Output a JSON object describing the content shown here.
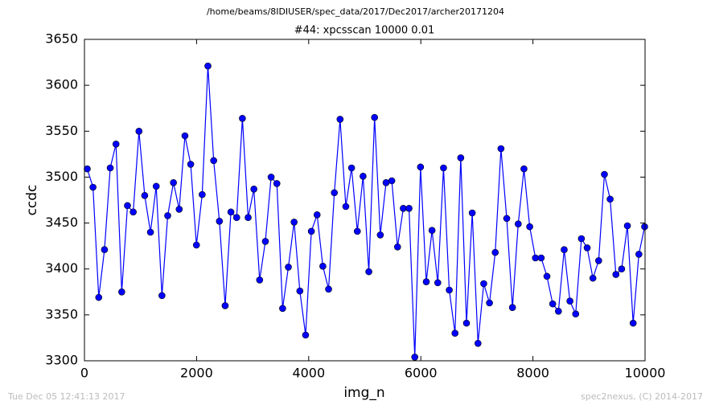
{
  "chart_data": {
    "type": "line",
    "suptitle": "/home/beams/8IDIUSER/spec_data/2017/Dec2017/archer20171204",
    "title": "#44: xpcsscan 10000 0.01",
    "xlabel": "img_n",
    "ylabel": "ccdc",
    "annotations": [
      "Tue Dec 05 12:41:13 2017",
      "spec2nexus, (C) 2014-2017"
    ],
    "color": "#0000ff",
    "x": [
      50,
      152.5,
      255,
      357.5,
      460,
      562.5,
      665,
      767.5,
      870,
      972.5,
      1075,
      1177.5,
      1280,
      1382.5,
      1485,
      1587.5,
      1690,
      1792.5,
      1895,
      1997.5,
      2100,
      2202.5,
      2305,
      2407.5,
      2510,
      2612.5,
      2715,
      2817.5,
      2920,
      3022.5,
      3125,
      3227.5,
      3330,
      3432.5,
      3535,
      3637.5,
      3740,
      3842.5,
      3945,
      4047.5,
      4150,
      4252.5,
      4355,
      4457.5,
      4560,
      4662.5,
      4765,
      4867.5,
      4970,
      5072.5,
      5175,
      5277.5,
      5380,
      5482.5,
      5585,
      5687.5,
      5790,
      5892.5,
      5995,
      6097.5,
      6200,
      6302.5,
      6405,
      6507.5,
      6610,
      6712.5,
      6815,
      6917.5,
      7020,
      7122.5,
      7225,
      7327.5,
      7430,
      7532.5,
      7635,
      7737.5,
      7840,
      7942.5,
      8045,
      8147.5,
      8250,
      8352.5,
      8455,
      8557.5,
      8660,
      8762.5,
      8865,
      8967.5,
      9070,
      9172.5,
      9275,
      9377.5,
      9480,
      9582.5,
      9685,
      9787.5,
      9890,
      9992.5
    ],
    "values": [
      3509,
      3489,
      3369,
      3421,
      3510,
      3536,
      3375,
      3469,
      3462,
      3550,
      3480,
      3440,
      3490,
      3371,
      3458,
      3494,
      3465,
      3545,
      3514,
      3426,
      3481,
      3621,
      3518,
      3452,
      3360,
      3462,
      3456,
      3564,
      3456,
      3487,
      3388,
      3430,
      3500,
      3493,
      3357,
      3402,
      3451,
      3376,
      3328,
      3441,
      3459,
      3403,
      3378,
      3483,
      3563,
      3468,
      3510,
      3441,
      3501,
      3397,
      3565,
      3437,
      3494,
      3496,
      3424,
      3466,
      3466,
      3304,
      3511,
      3386,
      3442,
      3385,
      3510,
      3377,
      3330,
      3521,
      3341,
      3461,
      3319,
      3384,
      3363,
      3418,
      3531,
      3455,
      3358,
      3449,
      3509,
      3446,
      3412,
      3412,
      3392,
      3362,
      3354,
      3421,
      3365,
      3351,
      3433,
      3423,
      3390,
      3409,
      3503,
      3476,
      3394,
      3400,
      3447,
      3341,
      3416,
      3446
    ],
    "xlim": [
      0,
      10000
    ],
    "xticks": [
      0,
      2000,
      4000,
      6000,
      8000,
      10000
    ],
    "ylim": [
      3300,
      3650
    ],
    "yticks": [
      3300,
      3350,
      3400,
      3450,
      3500,
      3550,
      3600,
      3650
    ]
  }
}
